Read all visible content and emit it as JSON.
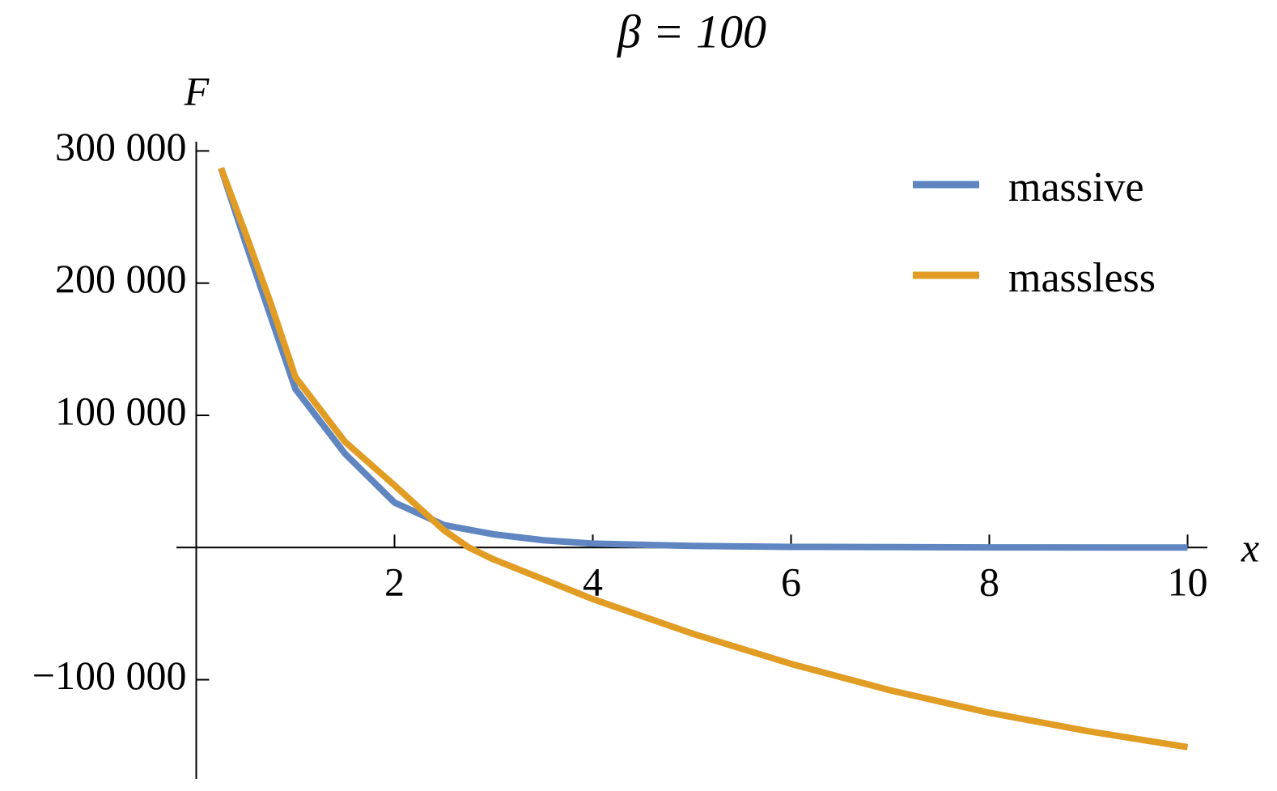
{
  "chart_data": {
    "type": "line",
    "title": "β = 100",
    "x_label": "x",
    "y_label": "F",
    "series": [
      {
        "name": "massive",
        "color": "#5f86c0",
        "x": [
          0.25,
          0.5,
          0.75,
          1,
          1.5,
          2,
          2.5,
          3,
          3.5,
          4,
          5,
          6,
          8,
          10
        ],
        "values": [
          287000,
          230000,
          175000,
          120000,
          71000,
          34000,
          17000,
          10000,
          5500,
          3000,
          1200,
          500,
          100,
          0
        ]
      },
      {
        "name": "massless",
        "color": "#e19c24",
        "x": [
          0.25,
          0.5,
          0.75,
          1,
          1.5,
          2,
          2.5,
          2.75,
          3,
          4,
          5,
          6,
          7,
          8,
          9,
          10
        ],
        "values": [
          287000,
          237000,
          185000,
          129000,
          80000,
          47000,
          13000,
          0,
          -9000,
          -39000,
          -65000,
          -88000,
          -108000,
          -125000,
          -139000,
          -151000
        ]
      }
    ],
    "xlim": [
      -0.2,
      10.2
    ],
    "ylim": [
      -175000,
      307000
    ],
    "xticks": [
      2,
      4,
      6,
      8,
      10
    ],
    "yticks": [
      {
        "value": -100000,
        "label": "−100 000"
      },
      {
        "value": 100000,
        "label": "100 000"
      },
      {
        "value": 200000,
        "label": "200 000"
      },
      {
        "value": 300000,
        "label": "300 000"
      }
    ],
    "legend": "top-right"
  }
}
